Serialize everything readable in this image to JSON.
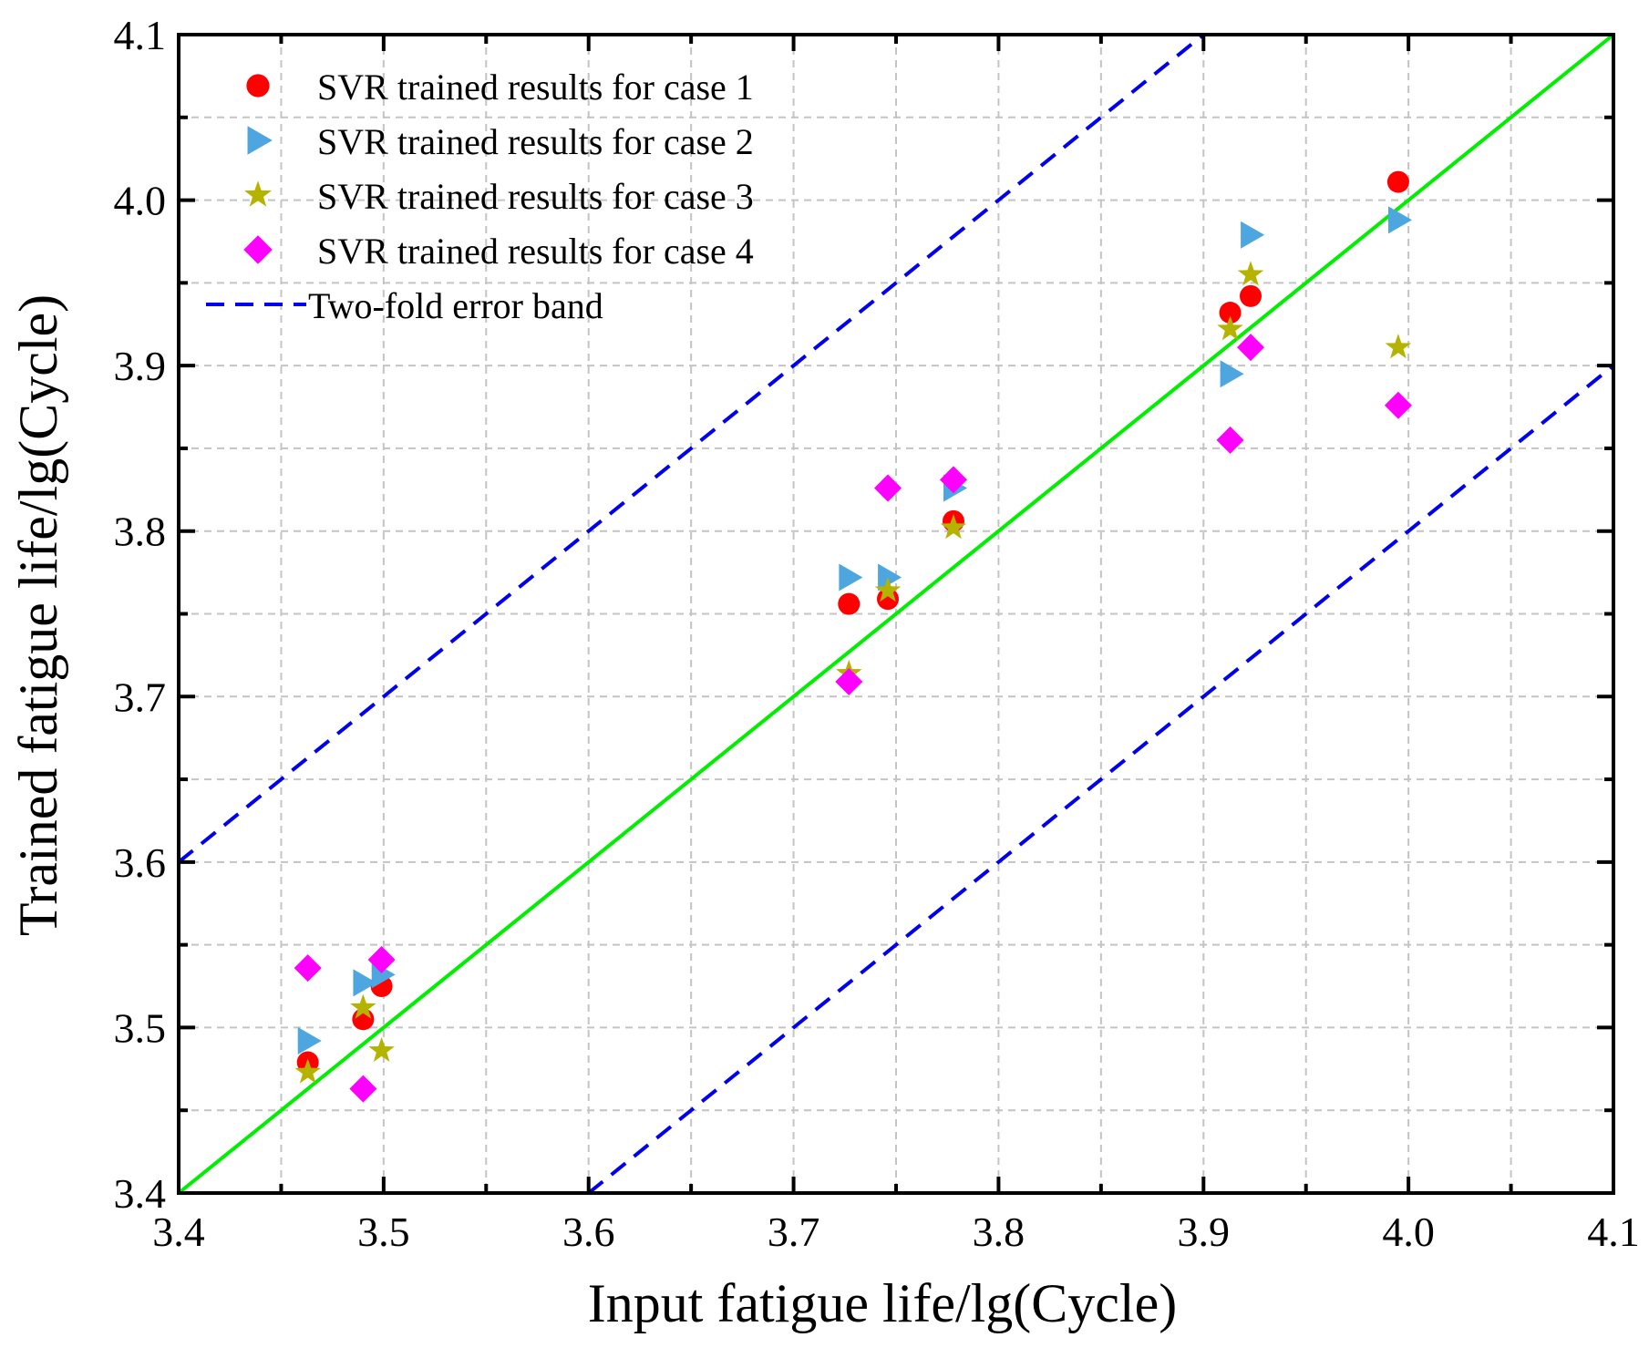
{
  "chart_data": {
    "type": "scatter",
    "title": "",
    "xlabel": "Input fatigue life/lg(Cycle)",
    "ylabel": "Trained fatigue life/lg(Cycle)",
    "xlim": [
      3.4,
      4.1
    ],
    "ylim": [
      3.4,
      4.1
    ],
    "xticks": [
      "3.4",
      "3.5",
      "3.6",
      "3.7",
      "3.8",
      "3.9",
      "4.0",
      "4.1"
    ],
    "yticks": [
      "3.4",
      "3.5",
      "3.6",
      "3.7",
      "3.8",
      "3.9",
      "4.0",
      "4.1"
    ],
    "grid": true,
    "legend_position": "top-left",
    "series": [
      {
        "name": "SVR trained results for case 1",
        "marker": "circle",
        "color": "#ff0000",
        "points": [
          [
            3.463,
            3.479
          ],
          [
            3.49,
            3.505
          ],
          [
            3.499,
            3.525
          ],
          [
            3.727,
            3.756
          ],
          [
            3.746,
            3.759
          ],
          [
            3.778,
            3.806
          ],
          [
            3.913,
            3.932
          ],
          [
            3.923,
            3.942
          ],
          [
            3.995,
            4.011
          ]
        ]
      },
      {
        "name": "SVR trained results for case 2",
        "marker": "triangle-right",
        "color": "#4da6e0",
        "points": [
          [
            3.463,
            3.492
          ],
          [
            3.49,
            3.527
          ],
          [
            3.499,
            3.532
          ],
          [
            3.727,
            3.772
          ],
          [
            3.746,
            3.772
          ],
          [
            3.778,
            3.826
          ],
          [
            3.913,
            3.895
          ],
          [
            3.923,
            3.979
          ],
          [
            3.995,
            3.988
          ]
        ]
      },
      {
        "name": "SVR trained results for case 3",
        "marker": "star",
        "color": "#b3b300",
        "points": [
          [
            3.463,
            3.473
          ],
          [
            3.49,
            3.512
          ],
          [
            3.499,
            3.486
          ],
          [
            3.727,
            3.714
          ],
          [
            3.746,
            3.764
          ],
          [
            3.778,
            3.802
          ],
          [
            3.913,
            3.922
          ],
          [
            3.923,
            3.955
          ],
          [
            3.995,
            3.911
          ]
        ]
      },
      {
        "name": "SVR trained results for case 4",
        "marker": "diamond",
        "color": "#ff00ff",
        "points": [
          [
            3.463,
            3.536
          ],
          [
            3.49,
            3.463
          ],
          [
            3.499,
            3.541
          ],
          [
            3.727,
            3.709
          ],
          [
            3.746,
            3.826
          ],
          [
            3.778,
            3.831
          ],
          [
            3.913,
            3.855
          ],
          [
            3.923,
            3.911
          ],
          [
            3.995,
            3.876
          ]
        ]
      }
    ],
    "reference_lines": [
      {
        "name": "y = x",
        "color": "#00ee00",
        "dash": "solid",
        "points": [
          [
            3.4,
            3.4
          ],
          [
            4.1,
            4.1
          ]
        ]
      },
      {
        "name": "Two-fold error band (upper)",
        "color": "#0000ee",
        "dash": "dashed",
        "points": [
          [
            3.4,
            3.6
          ],
          [
            3.9,
            4.1
          ]
        ]
      },
      {
        "name": "Two-fold error band (lower)",
        "color": "#0000ee",
        "dash": "dashed",
        "points": [
          [
            3.6,
            3.4
          ],
          [
            4.1,
            3.9
          ]
        ]
      }
    ],
    "legend": [
      {
        "label": "SVR trained results for case 1",
        "marker": "circle",
        "color": "#ff0000"
      },
      {
        "label": "SVR trained results for case 2",
        "marker": "triangle-right",
        "color": "#4da6e0"
      },
      {
        "label": "SVR trained results for case 3",
        "marker": "star",
        "color": "#b3b300"
      },
      {
        "label": "SVR trained results for case 4",
        "marker": "diamond",
        "color": "#ff00ff"
      },
      {
        "label": "Two-fold error band",
        "marker": "dashed-line",
        "color": "#0000ee"
      }
    ]
  }
}
